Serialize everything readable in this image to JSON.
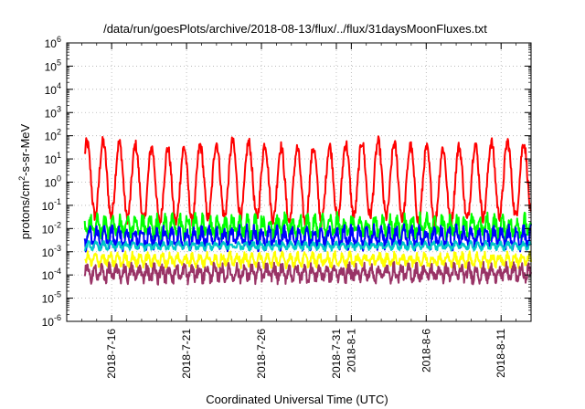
{
  "chart_data": {
    "type": "line",
    "title": "/data/run/goesPlots/archive/2018-08-13/flux/../flux/31daysMoonFluxes.txt",
    "xlabel": "Coordinated Universal Time (UTC)",
    "ylabel_parts": {
      "base": "protons/cm",
      "sup": "2",
      "rest": "-s-sr-MeV"
    },
    "y_scale": "log",
    "ylim": [
      1e-06,
      1000000.0
    ],
    "y_ticks": [
      {
        "base": "10",
        "exp": "-6"
      },
      {
        "base": "10",
        "exp": "-5"
      },
      {
        "base": "10",
        "exp": "-4"
      },
      {
        "base": "10",
        "exp": "-3"
      },
      {
        "base": "10",
        "exp": "-2"
      },
      {
        "base": "10",
        "exp": "-1"
      },
      {
        "base": "10",
        "exp": "0"
      },
      {
        "base": "10",
        "exp": "1"
      },
      {
        "base": "10",
        "exp": "2"
      },
      {
        "base": "10",
        "exp": "3"
      },
      {
        "base": "10",
        "exp": "4"
      },
      {
        "base": "10",
        "exp": "5"
      },
      {
        "base": "10",
        "exp": "6"
      }
    ],
    "xlim": [
      "2018-07-13",
      "2018-08-13"
    ],
    "x_ticks": [
      {
        "date": "2018-07-16",
        "label": "2018-7-16"
      },
      {
        "date": "2018-07-21",
        "label": "2018-7-21"
      },
      {
        "date": "2018-07-26",
        "label": "2018-7-26"
      },
      {
        "date": "2018-07-31",
        "label": "2018-7-31"
      },
      {
        "date": "2018-08-01",
        "label": "2018-8-1"
      },
      {
        "date": "2018-08-06",
        "label": "2018-8-6"
      },
      {
        "date": "2018-08-11",
        "label": "2018-8-11"
      }
    ],
    "grid": true,
    "series": [
      {
        "color": "#ff0000",
        "level": 1.0,
        "amplitude": 1.6,
        "noise": 0.25,
        "period_days": 1.08
      },
      {
        "color": "#00ff00",
        "level": 0.012,
        "amplitude": 0.35,
        "noise": 0.3,
        "period_days": 0.5
      },
      {
        "color": "#0000ff",
        "level": 0.004,
        "amplitude": 0.35,
        "noise": 0.25,
        "period_days": 0.5
      },
      {
        "color": "#00c8c8",
        "level": 0.0018,
        "amplitude": 0.12,
        "noise": 0.1,
        "period_days": 0.5
      },
      {
        "color": "#ffff00",
        "level": 0.00045,
        "amplitude": 0.2,
        "noise": 0.18,
        "period_days": 0.5
      },
      {
        "color": "#993366",
        "level": 0.00012,
        "amplitude": 0.25,
        "noise": 0.25,
        "period_days": 0.5
      }
    ]
  }
}
